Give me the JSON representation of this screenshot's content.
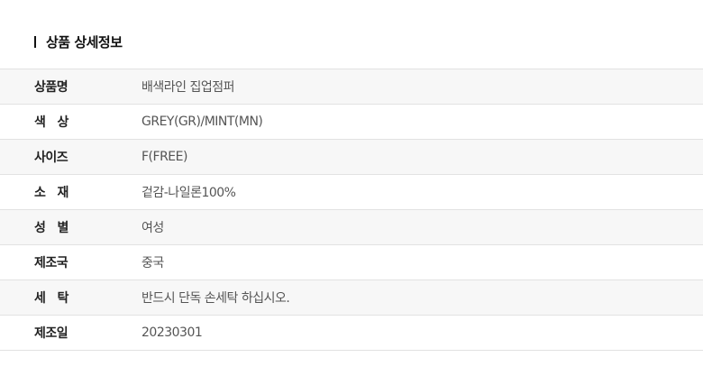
{
  "section_title": "상품 상세정보",
  "rows": [
    {
      "label": "상품명",
      "value": "배색라인 집업점퍼"
    },
    {
      "label": "색   상",
      "value": "GREY(GR)/MINT(MN)"
    },
    {
      "label": "사이즈",
      "value": "F(FREE)"
    },
    {
      "label": "소   재",
      "value": "겉감-나일론100%"
    },
    {
      "label": "성   별",
      "value": "여성"
    },
    {
      "label": "제조국",
      "value": "중국"
    },
    {
      "label": "세   탁",
      "value": "반드시 단독 손세탁 하십시오."
    },
    {
      "label": "제조일",
      "value": "20230301"
    }
  ]
}
